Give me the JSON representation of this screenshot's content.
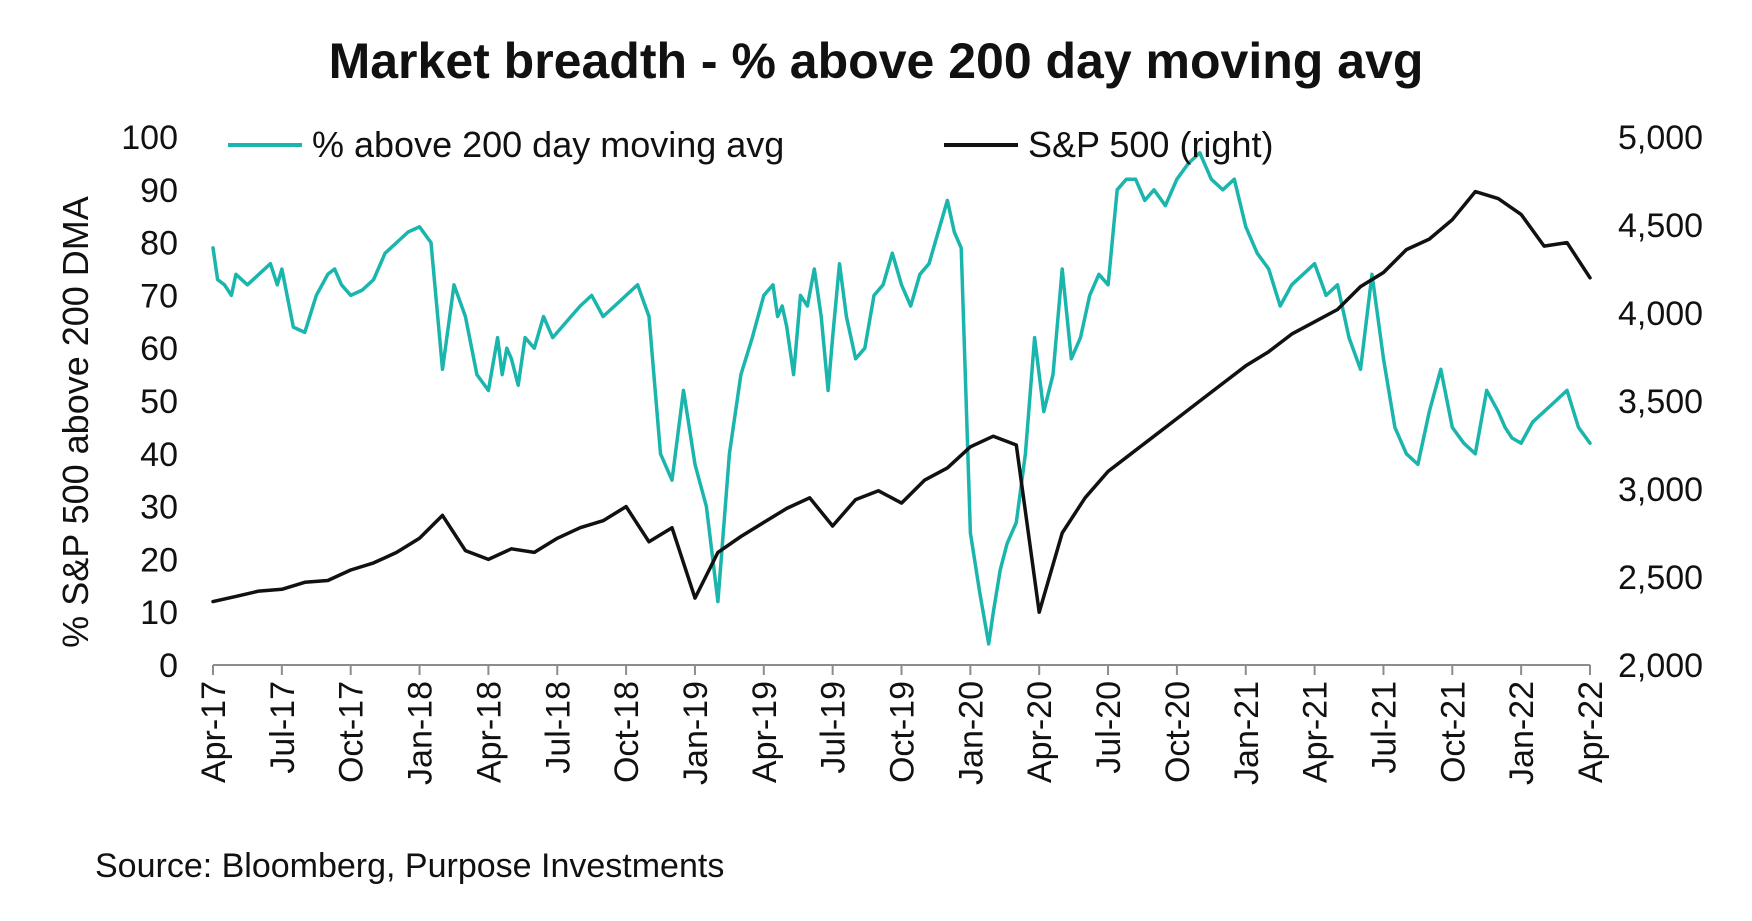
{
  "chart_data": {
    "type": "line",
    "title": "Market breadth - % above 200 day moving avg",
    "ylabel": "% S&P 500 above 200 DMA",
    "y2label": "",
    "ylim": [
      0,
      100
    ],
    "y2lim": [
      2000,
      5000
    ],
    "yticks": [
      "0",
      "10",
      "20",
      "30",
      "40",
      "50",
      "60",
      "70",
      "80",
      "90",
      "100"
    ],
    "y2ticks": [
      "2,000",
      "2,500",
      "3,000",
      "3,500",
      "4,000",
      "4,500",
      "5,000"
    ],
    "xticks": [
      "Apr-17",
      "Jul-17",
      "Oct-17",
      "Jan-18",
      "Apr-18",
      "Jul-18",
      "Oct-18",
      "Jan-19",
      "Apr-19",
      "Jul-19",
      "Oct-19",
      "Jan-20",
      "Apr-20",
      "Jul-20",
      "Oct-20",
      "Jan-21",
      "Apr-21",
      "Jul-21",
      "Oct-21",
      "Jan-22",
      "Apr-22"
    ],
    "legend_position": "top",
    "source": "Source: Bloomberg, Purpose Investments",
    "x_unit": "months since Apr-17",
    "series": [
      {
        "name": "% above 200 day moving avg",
        "axis": "left",
        "color": "#1ab5ac",
        "x": [
          0,
          0.2,
          0.5,
          0.8,
          1.0,
          1.5,
          2.0,
          2.5,
          2.8,
          3.0,
          3.5,
          4.0,
          4.5,
          5.0,
          5.3,
          5.6,
          6.0,
          6.5,
          7.0,
          7.5,
          8.0,
          8.5,
          9.0,
          9.5,
          10.0,
          10.5,
          11.0,
          11.5,
          12.0,
          12.4,
          12.6,
          12.8,
          13.0,
          13.3,
          13.6,
          14.0,
          14.4,
          14.8,
          15.2,
          15.6,
          16.0,
          16.5,
          17.0,
          17.5,
          18.0,
          18.5,
          19.0,
          19.5,
          20.0,
          20.5,
          21.0,
          21.5,
          22.0,
          22.5,
          23.0,
          23.5,
          24.0,
          24.4,
          24.6,
          24.8,
          25.0,
          25.3,
          25.6,
          25.9,
          26.2,
          26.5,
          26.8,
          27.0,
          27.3,
          27.6,
          28.0,
          28.4,
          28.8,
          29.2,
          29.6,
          30.0,
          30.4,
          30.8,
          31.2,
          31.6,
          32.0,
          32.3,
          32.6,
          33.0,
          33.4,
          33.8,
          34.0,
          34.3,
          34.6,
          35.0,
          35.4,
          35.8,
          36.2,
          36.6,
          37.0,
          37.4,
          37.8,
          38.2,
          38.6,
          39.0,
          39.4,
          39.8,
          40.2,
          40.6,
          41.0,
          41.5,
          42.0,
          42.5,
          43.0,
          43.5,
          44.0,
          44.5,
          45.0,
          45.5,
          46.0,
          46.5,
          47.0,
          47.5,
          48.0,
          48.5,
          49.0,
          49.5,
          50.0,
          50.5,
          51.0,
          51.5,
          52.0,
          52.5,
          53.0,
          53.5,
          54.0,
          54.5,
          55.0,
          55.5,
          56.0,
          56.3,
          56.6,
          57.0,
          57.5,
          58.0,
          58.5,
          59.0,
          59.5,
          60.0
        ],
        "values": [
          79,
          73,
          72,
          70,
          74,
          72,
          74,
          76,
          72,
          75,
          64,
          63,
          70,
          74,
          75,
          72,
          70,
          71,
          73,
          78,
          80,
          82,
          83,
          80,
          56,
          72,
          66,
          55,
          52,
          62,
          55,
          60,
          58,
          53,
          62,
          60,
          66,
          62,
          64,
          66,
          68,
          70,
          66,
          68,
          70,
          72,
          66,
          40,
          35,
          52,
          38,
          30,
          12,
          40,
          55,
          62,
          70,
          72,
          66,
          68,
          64,
          55,
          70,
          68,
          75,
          66,
          52,
          62,
          76,
          66,
          58,
          60,
          70,
          72,
          78,
          72,
          68,
          74,
          76,
          82,
          88,
          82,
          79,
          25,
          14,
          4,
          10,
          18,
          23,
          27,
          40,
          62,
          48,
          55,
          75,
          58,
          62,
          70,
          74,
          72,
          90,
          92,
          92,
          88,
          90,
          87,
          92,
          95,
          97,
          92,
          90,
          92,
          83,
          78,
          75,
          68,
          72,
          74,
          76,
          70,
          72,
          62,
          56,
          74,
          58,
          45,
          40,
          38,
          48,
          56,
          45,
          42,
          40,
          52,
          48,
          45,
          43,
          42,
          46,
          48,
          50,
          52,
          45,
          42
        ],
        "note": "values are approximate, read from the chart"
      },
      {
        "name": "S&P 500 (right)",
        "axis": "right",
        "color": "#111111",
        "x": [
          0,
          1,
          2,
          3,
          4,
          5,
          6,
          7,
          8,
          9,
          10,
          11,
          12,
          13,
          14,
          15,
          16,
          17,
          18,
          19,
          20,
          21,
          22,
          23,
          24,
          25,
          26,
          27,
          28,
          29,
          30,
          31,
          32,
          33,
          34,
          35,
          36,
          37,
          38,
          39,
          40,
          41,
          42,
          43,
          44,
          45,
          46,
          47,
          48,
          49,
          50,
          51,
          52,
          53,
          54,
          55,
          56,
          57,
          58,
          59,
          60
        ],
        "values": [
          2360,
          2390,
          2420,
          2430,
          2470,
          2480,
          2540,
          2580,
          2640,
          2720,
          2850,
          2650,
          2600,
          2660,
          2640,
          2720,
          2780,
          2820,
          2900,
          2700,
          2780,
          2380,
          2640,
          2730,
          2810,
          2890,
          2950,
          2790,
          2940,
          2990,
          2920,
          3050,
          3120,
          3240,
          3300,
          3250,
          2300,
          2750,
          2950,
          3100,
          3200,
          3300,
          3400,
          3500,
          3600,
          3700,
          3780,
          3880,
          3950,
          4020,
          4150,
          4230,
          4360,
          4420,
          4530,
          4690,
          4650,
          4560,
          4380,
          4400,
          4200
        ],
        "note": "values are approximate, read from the chart"
      }
    ]
  }
}
